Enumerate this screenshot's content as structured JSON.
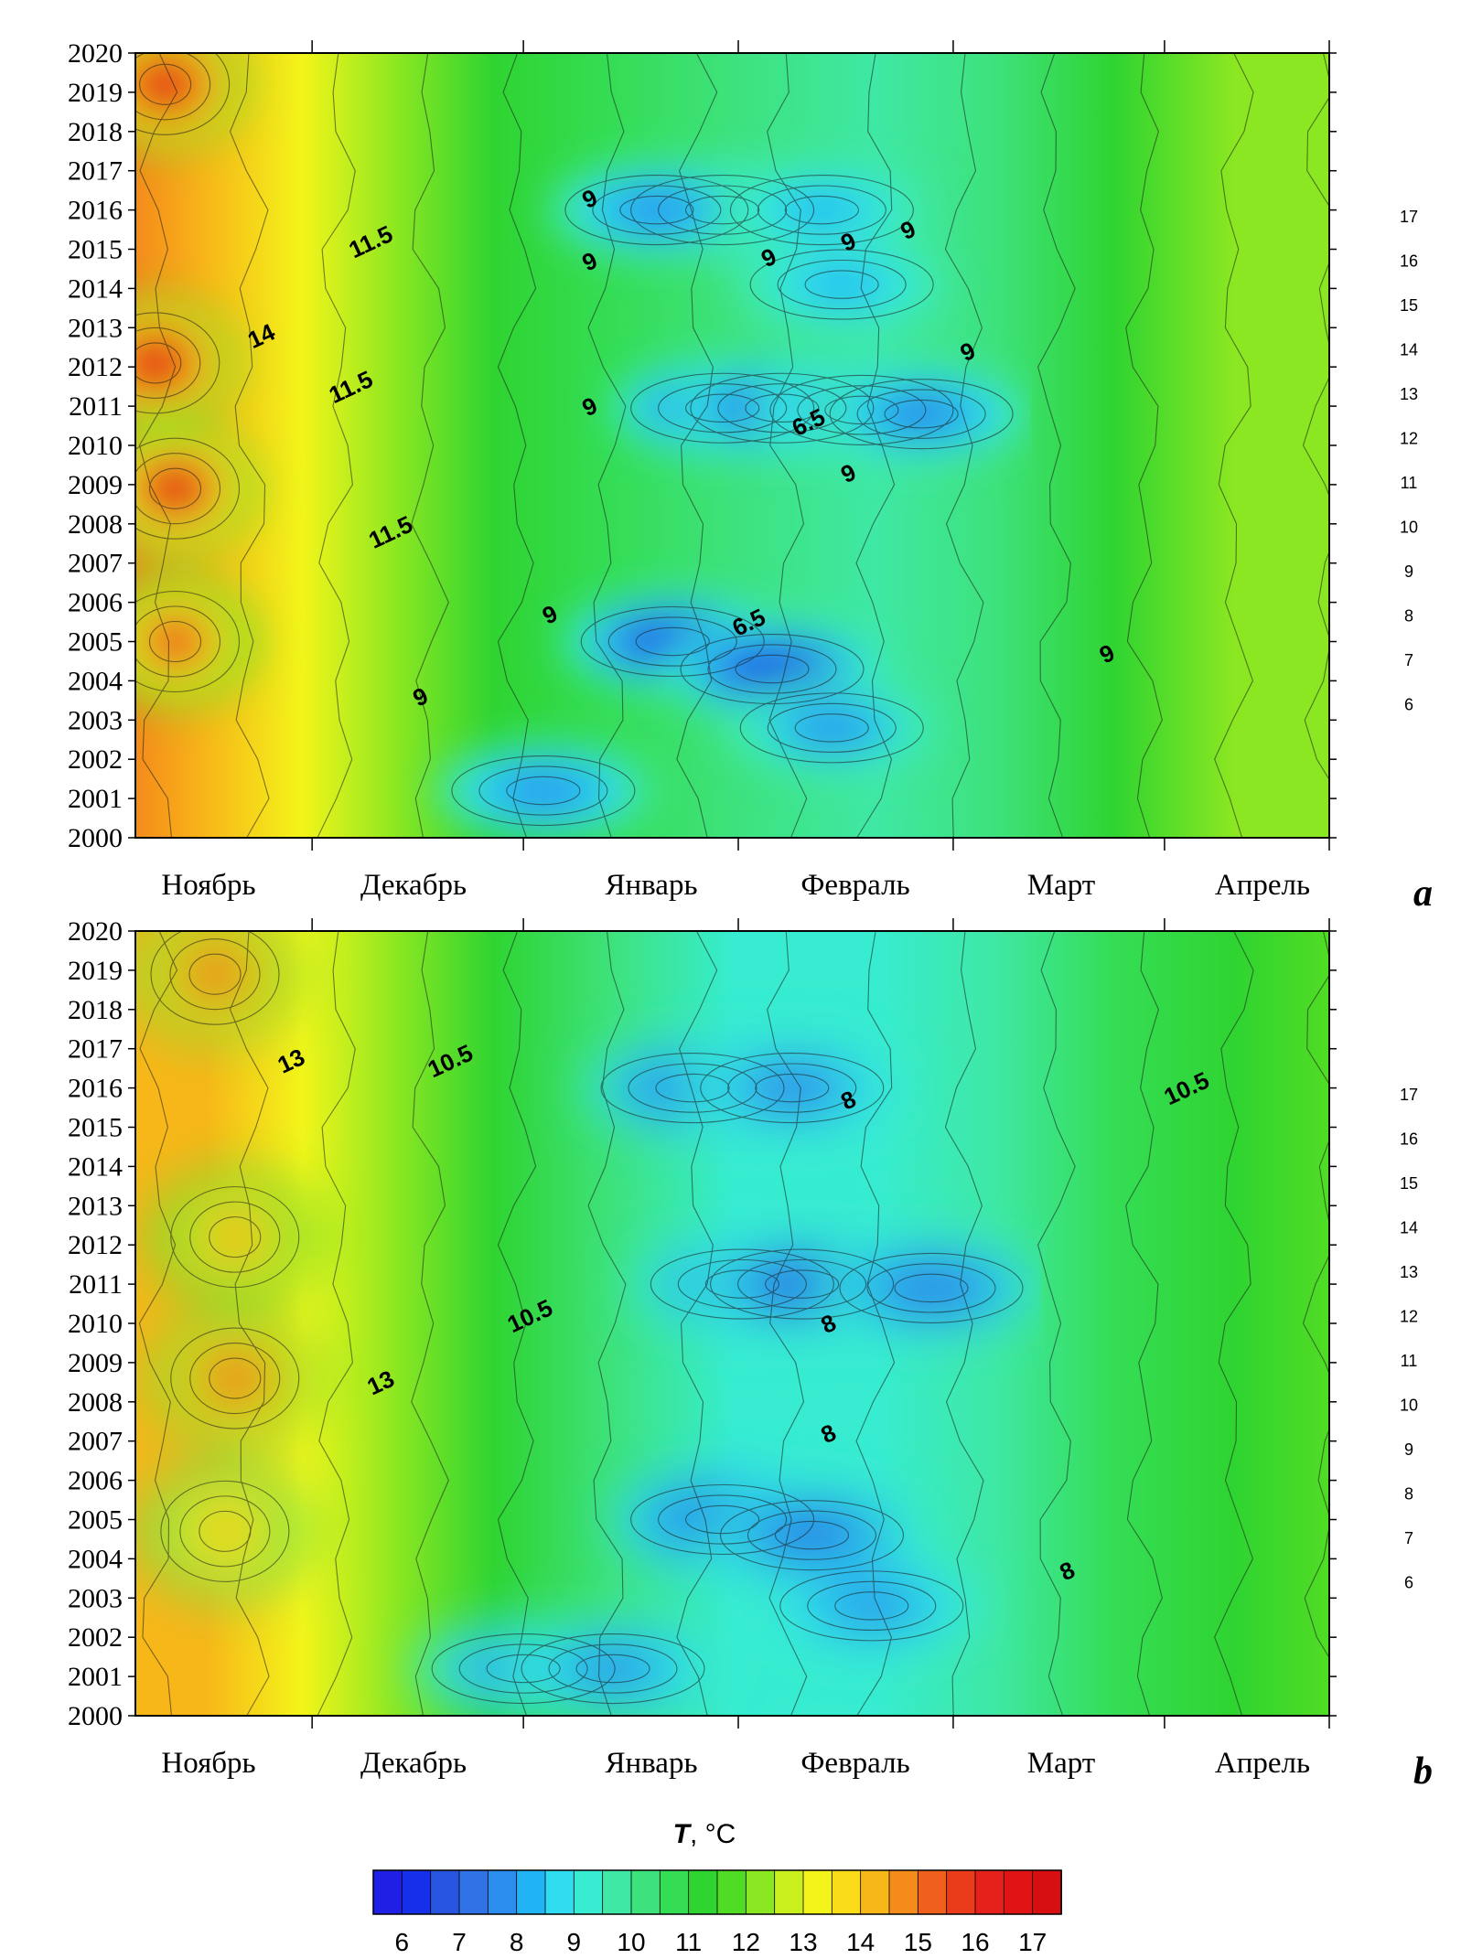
{
  "chart_data": [
    {
      "panel": "a",
      "type": "heatmap",
      "title": "",
      "xlabel": "",
      "ylabel": "",
      "x_categories": [
        "Ноябрь",
        "Декабрь",
        "Январь",
        "Февраль",
        "Март",
        "Апрель"
      ],
      "y_ticks": [
        "2000",
        "2001",
        "2002",
        "2003",
        "2004",
        "2005",
        "2006",
        "2007",
        "2008",
        "2009",
        "2010",
        "2011",
        "2012",
        "2013",
        "2014",
        "2015",
        "2016",
        "2017",
        "2018",
        "2019",
        "2020"
      ],
      "ylim": [
        2000,
        2020
      ],
      "side_scale": [
        "6",
        "7",
        "8",
        "9",
        "10",
        "11",
        "12",
        "13",
        "14",
        "15",
        "16",
        "17"
      ],
      "contour_labels": [
        {
          "text": "9",
          "month": 2.3,
          "year": 2016.1
        },
        {
          "text": "11.5",
          "month": 1.2,
          "year": 2015.0
        },
        {
          "text": "9",
          "month": 2.3,
          "year": 2014.5
        },
        {
          "text": "9",
          "month": 3.2,
          "year": 2014.6
        },
        {
          "text": "9",
          "month": 3.6,
          "year": 2015.0
        },
        {
          "text": "9",
          "month": 3.9,
          "year": 2015.3
        },
        {
          "text": "14",
          "month": 0.65,
          "year": 2012.6
        },
        {
          "text": "11.5",
          "month": 1.1,
          "year": 2011.3
        },
        {
          "text": "9",
          "month": 4.2,
          "year": 2012.2
        },
        {
          "text": "9",
          "month": 2.3,
          "year": 2010.8
        },
        {
          "text": "6.5",
          "month": 3.4,
          "year": 2010.4
        },
        {
          "text": "9",
          "month": 3.6,
          "year": 2009.1
        },
        {
          "text": "11.5",
          "month": 1.3,
          "year": 2007.6
        },
        {
          "text": "9",
          "month": 2.1,
          "year": 2005.5
        },
        {
          "text": "6.5",
          "month": 3.1,
          "year": 2005.3
        },
        {
          "text": "9",
          "month": 4.9,
          "year": 2004.5
        },
        {
          "text": "9",
          "month": 1.45,
          "year": 2003.4
        }
      ],
      "minima": [
        {
          "month": 2.95,
          "year": 2016.0,
          "value": 6.8
        },
        {
          "month": 2.62,
          "year": 2016.0,
          "value": 7.6
        },
        {
          "month": 3.45,
          "year": 2016.0,
          "value": 8.3
        },
        {
          "month": 3.55,
          "year": 2014.1,
          "value": 8.4
        },
        {
          "month": 2.05,
          "year": 2001.2,
          "value": 7.5
        },
        {
          "month": 2.95,
          "year": 2010.95,
          "value": 6.2
        },
        {
          "month": 3.25,
          "year": 2010.95,
          "value": 6.4
        },
        {
          "month": 3.65,
          "year": 2010.9,
          "value": 7.2
        },
        {
          "month": 3.95,
          "year": 2010.8,
          "value": 7.4
        },
        {
          "month": 2.7,
          "year": 2005.0,
          "value": 6.2
        },
        {
          "month": 3.2,
          "year": 2004.3,
          "value": 6.3
        },
        {
          "month": 3.5,
          "year": 2002.8,
          "value": 7.8
        }
      ],
      "maxima": [
        {
          "month": 0.15,
          "year": 2019.2,
          "value": 16.8
        },
        {
          "month": 0.1,
          "year": 2012.1,
          "value": 16.9
        },
        {
          "month": 0.2,
          "year": 2008.9,
          "value": 16.7
        },
        {
          "month": 0.2,
          "year": 2005.0,
          "value": 15.6
        }
      ]
    },
    {
      "panel": "b",
      "type": "heatmap",
      "title": "",
      "xlabel": "",
      "ylabel": "",
      "x_categories": [
        "Ноябрь",
        "Декабрь",
        "Январь",
        "Февраль",
        "Март",
        "Апрель"
      ],
      "y_ticks": [
        "2000",
        "2001",
        "2002",
        "2003",
        "2004",
        "2005",
        "2006",
        "2007",
        "2008",
        "2009",
        "2010",
        "2011",
        "2012",
        "2013",
        "2014",
        "2015",
        "2016",
        "2017",
        "2018",
        "2019",
        "2020"
      ],
      "ylim": [
        2000,
        2020
      ],
      "side_scale": [
        "6",
        "7",
        "8",
        "9",
        "10",
        "11",
        "12",
        "13",
        "14",
        "15",
        "16",
        "17"
      ],
      "contour_labels": [
        {
          "text": "13",
          "month": 0.8,
          "year": 2016.5
        },
        {
          "text": "10.5",
          "month": 1.6,
          "year": 2016.5
        },
        {
          "text": "10.5",
          "month": 5.3,
          "year": 2015.8
        },
        {
          "text": "8",
          "month": 3.6,
          "year": 2015.5
        },
        {
          "text": "10.5",
          "month": 2.0,
          "year": 2010.0
        },
        {
          "text": "8",
          "month": 3.5,
          "year": 2009.8
        },
        {
          "text": "13",
          "month": 1.25,
          "year": 2008.3
        },
        {
          "text": "8",
          "month": 3.5,
          "year": 2007.0
        },
        {
          "text": "8",
          "month": 4.7,
          "year": 2003.5
        }
      ],
      "minima": [
        {
          "month": 2.8,
          "year": 2016.0,
          "value": 7.0
        },
        {
          "month": 3.3,
          "year": 2016.0,
          "value": 7.3
        },
        {
          "month": 3.05,
          "year": 2011.0,
          "value": 6.6
        },
        {
          "month": 3.35,
          "year": 2011.0,
          "value": 6.6
        },
        {
          "month": 4.0,
          "year": 2010.9,
          "value": 7.1
        },
        {
          "month": 2.95,
          "year": 2005.0,
          "value": 6.3
        },
        {
          "month": 3.4,
          "year": 2004.6,
          "value": 6.8
        },
        {
          "month": 3.7,
          "year": 2002.8,
          "value": 7.4
        },
        {
          "month": 1.95,
          "year": 2001.2,
          "value": 7.2
        },
        {
          "month": 2.4,
          "year": 2001.2,
          "value": 7.4
        }
      ],
      "maxima": [
        {
          "month": 0.4,
          "year": 2018.9,
          "value": 15.8
        },
        {
          "month": 0.5,
          "year": 2008.6,
          "value": 15.7
        },
        {
          "month": 0.5,
          "year": 2012.2,
          "value": 14.6
        },
        {
          "month": 0.45,
          "year": 2004.7,
          "value": 14.3
        }
      ]
    }
  ],
  "panels": {
    "a": {
      "letter": "a"
    },
    "b": {
      "letter": "b"
    }
  },
  "colorbar": {
    "title_var": "T",
    "title_unit": ", °C",
    "ticks": [
      "6",
      "7",
      "8",
      "9",
      "10",
      "11",
      "12",
      "13",
      "14",
      "15",
      "16",
      "17"
    ],
    "range": [
      5.5,
      17.5
    ],
    "colors": [
      "#1f1fe6",
      "#1530e8",
      "#2755e0",
      "#2f73e6",
      "#2b8eef",
      "#21b4f4",
      "#2fdcf0",
      "#37ecd0",
      "#3fe8a4",
      "#3ee27c",
      "#35dd55",
      "#2fd431",
      "#50dc24",
      "#8ae721",
      "#c9f01c",
      "#f3f51a",
      "#fadd18",
      "#f8b719",
      "#f48b1b",
      "#ef601c",
      "#ea3c1b",
      "#e6211b",
      "#e01414",
      "#d80f10"
    ]
  }
}
